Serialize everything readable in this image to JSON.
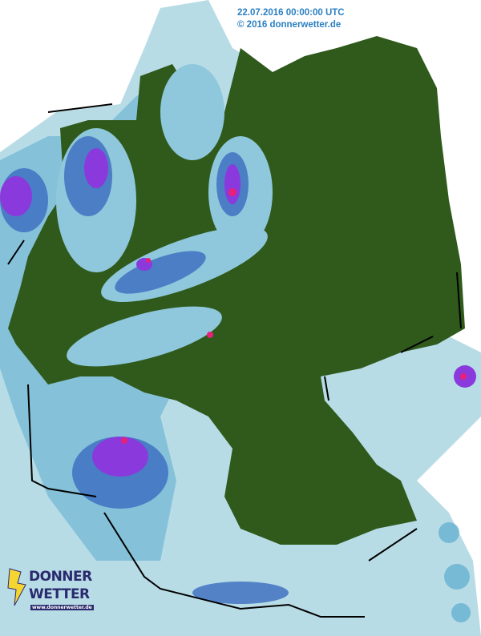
{
  "header": {
    "timestamp": "22.07.2016 00:00:00 UTC",
    "copyright": "© 2016 donnerwetter.de"
  },
  "logo": {
    "line1": "DONNER",
    "line2": "WETTER",
    "url": "www.donnerwetter.de"
  },
  "colors": {
    "land_no_rain": "#2f5a1c",
    "rain_light": "#b8dce6",
    "rain_medium": "#6ab4d2",
    "rain_heavy": "#3a6cc0",
    "rain_very_heavy": "#8a3adc",
    "rain_extreme": "#e8207a",
    "border": "#000000"
  }
}
